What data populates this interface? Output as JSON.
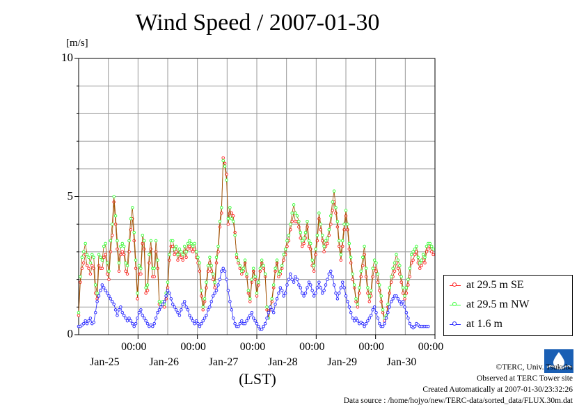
{
  "title": "Wind Speed / 2007-01-30",
  "unit_label": "[m/s]",
  "xlabel": "(LST)",
  "credits": {
    "copyright": "©TERC, Univ. Tsukuba",
    "observed": "Observed at TERC Tower site",
    "created": "Created Automatically at 2007-01-30/23:32:26",
    "source": "Data source : /home/hojyo/new/TERC-data/sorted_data/FLUX.30m.dat"
  },
  "logo_text": "TERC",
  "colors": {
    "se": "#ff2020",
    "nw": "#33ff33",
    "low": "#2020ff",
    "connector": "#a05000",
    "grid": "#999999"
  },
  "chart_data": {
    "type": "line",
    "title": "Wind Speed / 2007-01-30",
    "ylabel": "[m/s]",
    "xlabel": "(LST)",
    "ylim": [
      0,
      10
    ],
    "y_ticks": [
      {
        "v": 0,
        "label": "0"
      },
      {
        "v": 5,
        "label": "5"
      },
      {
        "v": 10,
        "label": "10"
      }
    ],
    "xlim_hours": [
      0,
      144
    ],
    "x_ticks": [
      {
        "h": 24,
        "time": "00:00",
        "date": "Jan-25"
      },
      {
        "h": 48,
        "time": "00:00",
        "date": "Jan-26"
      },
      {
        "h": 72,
        "time": "00:00",
        "date": "Jan-27"
      },
      {
        "h": 96,
        "time": "00:00",
        "date": "Jan-28"
      },
      {
        "h": 120,
        "time": "00:00",
        "date": "Jan-29"
      },
      {
        "h": 144,
        "time": "00:00",
        "date": "Jan-30"
      }
    ],
    "grid": true,
    "legend_position": "right-bottom",
    "x_step_hours": 0.5,
    "series": [
      {
        "name": "at 29.5 m SE",
        "color": "#ff2020",
        "values": [
          0.7,
          1.9,
          2.4,
          2.6,
          2.9,
          2.5,
          2.4,
          2.2,
          2.5,
          2.4,
          1.5,
          1.3,
          2.5,
          2.4,
          2.4,
          2.8,
          2.9,
          2.2,
          2.0,
          3.0,
          3.6,
          4.8,
          4.0,
          3.1,
          2.3,
          2.9,
          3.0,
          2.9,
          2.3,
          2.2,
          3.0,
          3.8,
          4.2,
          3.4,
          2.4,
          1.3,
          2.2,
          2.2,
          3.3,
          3.1,
          1.5,
          1.6,
          2.6,
          3.1,
          2.1,
          2.1,
          3.0,
          2.4,
          1.1,
          1.0,
          1.1,
          1.0,
          1.3,
          1.7,
          2.7,
          3.2,
          3.2,
          2.9,
          3.0,
          2.7,
          2.9,
          2.8,
          2.7,
          3.0,
          2.8,
          3.1,
          3.2,
          3.1,
          3.0,
          3.1,
          2.8,
          2.6,
          2.3,
          1.4,
          0.9,
          1.2,
          1.7,
          2.3,
          2.6,
          2.3,
          2.0,
          1.7,
          2.6,
          3.0,
          3.9,
          4.4,
          6.4,
          6.2,
          5.8,
          4.0,
          4.4,
          4.4,
          4.3,
          3.7,
          2.8,
          2.6,
          2.4,
          2.2,
          2.3,
          2.6,
          2.1,
          1.5,
          1.2,
          1.9,
          2.3,
          2.0,
          1.4,
          1.8,
          2.3,
          2.6,
          2.4,
          2.1,
          0.9,
          0.6,
          0.9,
          1.2,
          1.7,
          2.3,
          2.6,
          2.1,
          2.2,
          2.4,
          2.7,
          2.9,
          3.2,
          3.4,
          3.8,
          4.1,
          4.4,
          4.1,
          4.1,
          3.9,
          3.5,
          3.2,
          3.3,
          3.5,
          3.9,
          3.2,
          3.1,
          2.5,
          2.3,
          2.9,
          3.4,
          4.2,
          3.8,
          3.4,
          3.0,
          3.2,
          3.3,
          3.6,
          4.0,
          4.5,
          4.8,
          4.4,
          3.9,
          3.2,
          2.7,
          3.2,
          3.8,
          4.3,
          3.8,
          3.1,
          2.6,
          2.0,
          1.7,
          1.2,
          1.0,
          1.5,
          2.1,
          2.5,
          2.9,
          2.1,
          1.5,
          1.2,
          1.4,
          2.1,
          2.4,
          2.3,
          1.9,
          1.6,
          1.2,
          0.8,
          0.5,
          0.6,
          1.0,
          1.5,
          1.9,
          2.1,
          2.3,
          2.6,
          2.4,
          2.2,
          1.9,
          1.5,
          1.3,
          1.5,
          1.8,
          2.1,
          2.6,
          2.7,
          2.9,
          3.0,
          2.6,
          2.4,
          2.5,
          2.7,
          2.6,
          3.0,
          3.1,
          3.2,
          3.0,
          2.9
        ]
      },
      {
        "name": "at 29.5 m NW",
        "color": "#33ff33",
        "values": [
          0.8,
          2.1,
          2.8,
          3.0,
          3.3,
          2.9,
          2.8,
          2.6,
          2.9,
          2.8,
          1.8,
          1.5,
          2.9,
          2.8,
          2.7,
          3.2,
          3.3,
          2.6,
          2.3,
          3.4,
          4.0,
          5.0,
          4.3,
          3.4,
          2.6,
          3.2,
          3.3,
          3.2,
          2.6,
          2.5,
          3.4,
          4.2,
          4.6,
          3.7,
          2.7,
          1.5,
          2.5,
          2.4,
          3.6,
          3.4,
          1.7,
          1.8,
          2.9,
          3.4,
          2.4,
          2.4,
          3.4,
          2.7,
          1.2,
          1.1,
          1.2,
          1.1,
          1.5,
          1.9,
          2.9,
          3.4,
          3.4,
          3.1,
          3.2,
          2.9,
          3.1,
          3.0,
          2.9,
          3.2,
          3.0,
          3.3,
          3.4,
          3.3,
          3.2,
          3.3,
          3.0,
          2.8,
          2.6,
          1.6,
          1.0,
          1.3,
          1.9,
          2.5,
          2.8,
          2.5,
          2.2,
          1.9,
          2.8,
          3.2,
          4.1,
          4.6,
          6.3,
          6.1,
          5.6,
          4.2,
          4.6,
          4.2,
          4.1,
          3.6,
          2.9,
          2.7,
          2.5,
          2.3,
          2.4,
          2.7,
          2.2,
          1.6,
          1.3,
          2.0,
          2.4,
          2.1,
          1.5,
          1.9,
          2.4,
          2.7,
          2.5,
          2.2,
          1.0,
          0.6,
          1.0,
          1.3,
          1.8,
          2.4,
          2.7,
          2.2,
          2.3,
          2.5,
          2.9,
          3.1,
          3.4,
          3.6,
          4.0,
          4.4,
          4.7,
          4.4,
          4.3,
          4.1,
          3.7,
          3.4,
          3.5,
          3.7,
          4.1,
          3.4,
          3.3,
          2.7,
          2.5,
          3.1,
          3.6,
          4.4,
          4.0,
          3.6,
          3.2,
          3.4,
          3.5,
          3.8,
          4.3,
          4.8,
          5.2,
          4.6,
          4.1,
          3.4,
          2.9,
          3.4,
          4.0,
          4.5,
          4.0,
          3.3,
          2.8,
          2.2,
          1.8,
          1.3,
          1.1,
          1.7,
          2.3,
          2.8,
          3.2,
          2.4,
          1.7,
          1.4,
          1.6,
          2.4,
          2.7,
          2.6,
          2.2,
          1.8,
          1.4,
          0.9,
          0.6,
          0.7,
          1.1,
          1.7,
          2.1,
          2.4,
          2.6,
          2.9,
          2.7,
          2.5,
          2.1,
          1.7,
          1.4,
          1.7,
          2.0,
          2.4,
          2.9,
          3.0,
          3.1,
          3.2,
          2.8,
          2.6,
          2.7,
          2.9,
          2.8,
          3.2,
          3.3,
          3.3,
          3.2,
          3.1
        ]
      },
      {
        "name": "at 1.6 m",
        "color": "#2020ff",
        "values": [
          0.3,
          0.3,
          0.35,
          0.4,
          0.5,
          0.4,
          0.5,
          0.6,
          0.4,
          0.45,
          0.8,
          1.2,
          1.4,
          1.6,
          1.8,
          1.7,
          1.6,
          1.5,
          1.4,
          1.3,
          1.2,
          1.1,
          0.9,
          0.7,
          0.9,
          1.0,
          0.8,
          0.7,
          0.6,
          0.5,
          0.6,
          0.5,
          0.4,
          0.3,
          0.4,
          0.6,
          0.8,
          0.9,
          0.7,
          0.6,
          0.5,
          0.4,
          0.3,
          0.35,
          0.3,
          0.4,
          0.6,
          0.8,
          0.9,
          1.0,
          1.1,
          1.2,
          1.4,
          1.6,
          1.5,
          1.3,
          1.1,
          1.0,
          0.9,
          0.8,
          0.7,
          0.9,
          1.1,
          1.2,
          1.0,
          0.9,
          0.7,
          0.6,
          0.5,
          0.4,
          0.5,
          0.4,
          0.3,
          0.4,
          0.5,
          0.6,
          0.7,
          0.9,
          1.0,
          1.2,
          1.4,
          1.5,
          1.6,
          1.8,
          2.0,
          2.3,
          2.4,
          2.3,
          2.0,
          1.6,
          1.2,
          0.9,
          0.6,
          0.4,
          0.3,
          0.3,
          0.4,
          0.5,
          0.4,
          0.4,
          0.5,
          0.6,
          0.7,
          0.8,
          0.6,
          0.5,
          0.4,
          0.3,
          0.2,
          0.2,
          0.3,
          0.4,
          0.6,
          0.8,
          1.0,
          0.9,
          0.8,
          1.1,
          1.3,
          1.5,
          1.7,
          1.6,
          1.4,
          1.5,
          1.8,
          2.0,
          2.2,
          2.0,
          1.9,
          2.1,
          2.0,
          1.8,
          1.7,
          1.5,
          1.4,
          1.5,
          1.7,
          1.9,
          1.8,
          1.6,
          1.4,
          1.5,
          1.7,
          1.9,
          1.7,
          1.5,
          1.6,
          1.8,
          2.0,
          2.2,
          2.3,
          2.1,
          1.8,
          1.5,
          1.3,
          1.5,
          1.7,
          1.9,
          1.7,
          1.4,
          1.2,
          1.0,
          0.8,
          0.6,
          0.5,
          0.6,
          0.5,
          0.4,
          0.45,
          0.4,
          0.3,
          0.4,
          0.5,
          0.6,
          0.7,
          0.9,
          1.0,
          0.8,
          0.6,
          0.4,
          0.3,
          0.3,
          0.4,
          0.6,
          0.8,
          1.0,
          1.2,
          1.3,
          1.4,
          1.4,
          1.3,
          1.2,
          1.1,
          1.2,
          1.0,
          0.8,
          0.6,
          0.4,
          0.3,
          0.25,
          0.3,
          0.4,
          0.35,
          0.3,
          0.3,
          0.3,
          0.3,
          0.3,
          0.3
        ]
      }
    ]
  }
}
